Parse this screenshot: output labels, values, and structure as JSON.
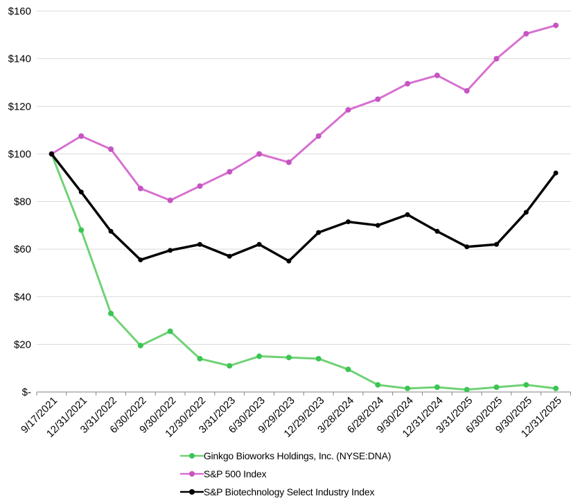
{
  "chart_data": {
    "type": "line",
    "title": "",
    "xlabel": "",
    "ylabel": "",
    "ylim": [
      0,
      160
    ],
    "grid": true,
    "legend_position": "bottom-center",
    "y_ticks": [
      {
        "value": 160,
        "label": "$160"
      },
      {
        "value": 140,
        "label": "$140"
      },
      {
        "value": 120,
        "label": "$120"
      },
      {
        "value": 100,
        "label": "$100"
      },
      {
        "value": 80,
        "label": "$80"
      },
      {
        "value": 60,
        "label": "$60"
      },
      {
        "value": 40,
        "label": "$40"
      },
      {
        "value": 20,
        "label": "$20"
      },
      {
        "value": 0,
        "label": "$-"
      }
    ],
    "categories": [
      "9/17/2021",
      "12/31/2021",
      "3/31/2022",
      "6/30/2022",
      "9/30/2022",
      "12/30/2022",
      "3/31/2023",
      "6/30/2023",
      "9/29/2023",
      "12/29/2023",
      "3/28/2024",
      "6/28/2024",
      "9/30/2024",
      "12/31/2024",
      "3/31/2025",
      "6/30/2025",
      "9/30/2025",
      "12/31/2025"
    ],
    "series": [
      {
        "name": "Ginkgo Bioworks Holdings, Inc. (NYSE:DNA)",
        "line_color": "#6fd274",
        "marker_color": "#3cc554",
        "line_width": 3,
        "marker_radius": 4,
        "values": [
          100,
          68,
          33,
          19.5,
          25.5,
          14,
          11,
          15,
          14.5,
          14,
          9.5,
          3,
          1.5,
          2,
          1,
          2,
          3,
          1.5
        ]
      },
      {
        "name": "S&P 500 Index",
        "line_color": "#d76fd0",
        "marker_color": "#c654c2",
        "line_width": 3,
        "marker_radius": 4,
        "values": [
          100,
          107.5,
          102,
          85.5,
          80.5,
          86.5,
          92.5,
          100,
          96.5,
          107.5,
          118.5,
          123,
          129.5,
          133,
          126.5,
          140,
          150.5,
          154
        ]
      },
      {
        "name": "S&P Biotechnology Select Industry Index",
        "line_color": "#000000",
        "marker_color": "#000000",
        "line_width": 3.5,
        "marker_radius": 3.5,
        "values": [
          100,
          84,
          67.5,
          55.5,
          59.5,
          62,
          57,
          62,
          55,
          67,
          71.5,
          70,
          74.5,
          67.5,
          61,
          62,
          75.5,
          92
        ]
      }
    ],
    "colors": {
      "gridline": "#d9d9d9",
      "axis_line": "#808080",
      "tick_mark": "#808080",
      "label_text": "#000000"
    }
  }
}
